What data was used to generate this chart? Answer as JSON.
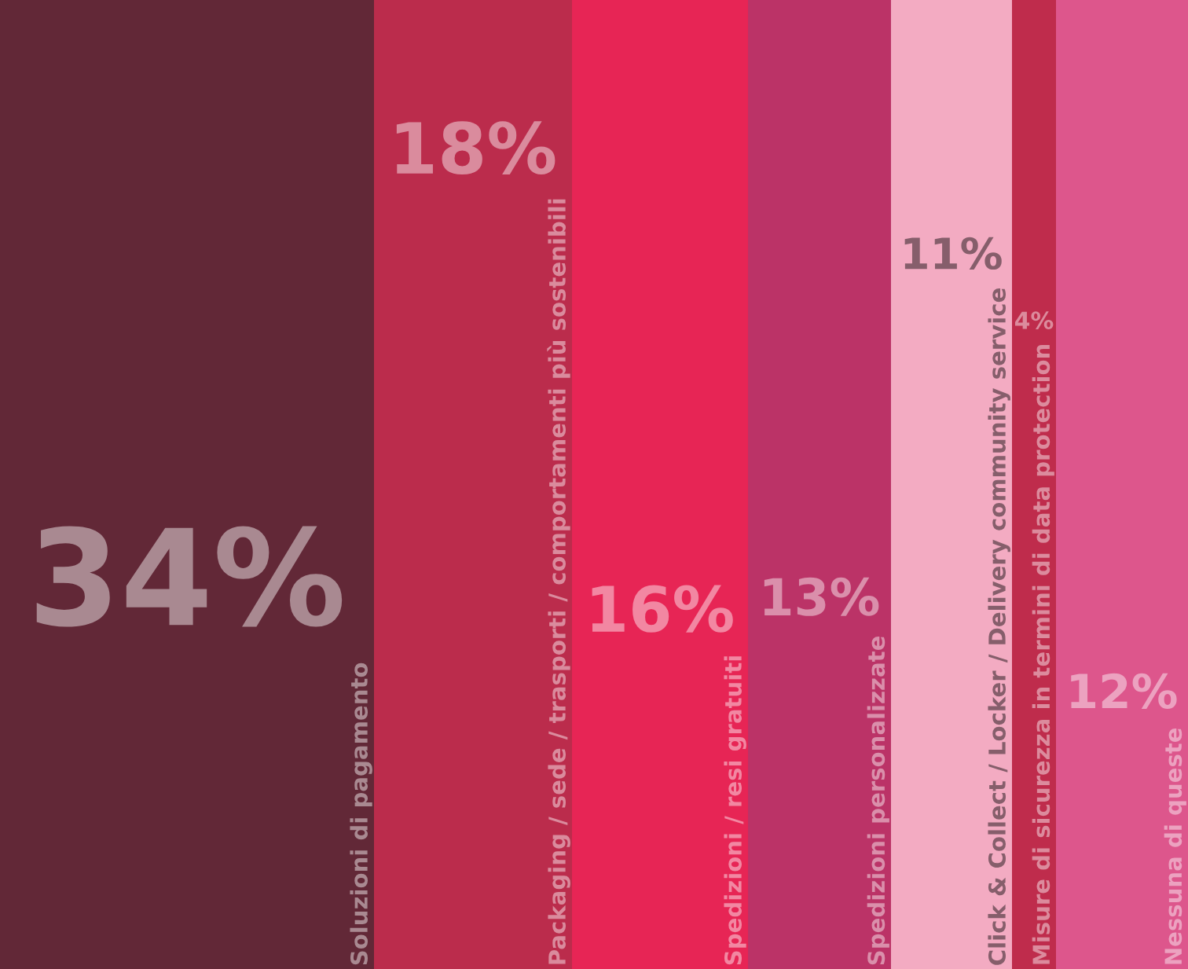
{
  "chart_data": {
    "type": "other",
    "categories": [
      "Soluzioni di pagamento",
      "Packaging / sede / trasporti / comportamenti più sostenibili",
      "Spedizioni / resi gratuiti",
      "Spedizioni personalizzate",
      "Click & Collect / Locker / Delivery community service",
      "Misure di sicurezza in termini di data protection",
      "Nessuna di queste"
    ],
    "values": [
      34,
      18,
      16,
      13,
      11,
      4,
      12
    ],
    "colors": [
      "#622837",
      "#bb2c4c",
      "#e72555",
      "#bb3367",
      "#f3abc2",
      "#bf2c4c",
      "#dd568c"
    ],
    "value_labels": [
      "34%",
      "18%",
      "16%",
      "13%",
      "11%",
      "4%",
      "12%"
    ]
  }
}
